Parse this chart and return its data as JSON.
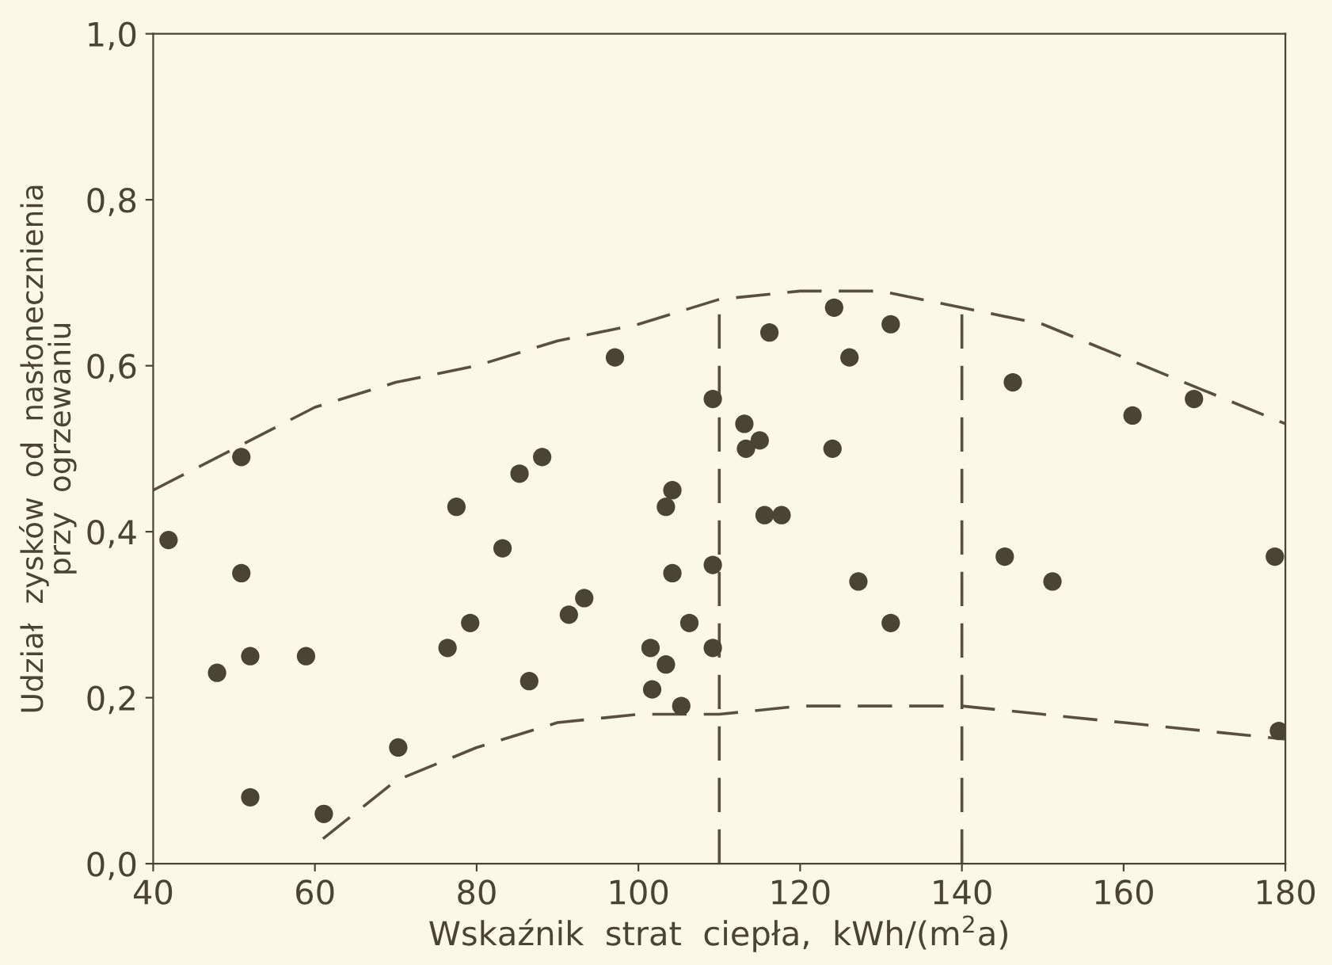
{
  "chart_data": {
    "type": "scatter",
    "xlabel": "Wskaźnik  strat  ciepła,  kWh/(m$^{2}$a)",
    "ylabel": "Udział  zysków  od  nasłonecznienia\nprzy  ogrzewaniu",
    "xlim": [
      40,
      180
    ],
    "xticks": [
      40,
      60,
      80,
      100,
      120,
      140,
      160,
      180
    ],
    "ylim": [
      0,
      1
    ],
    "yticks": [
      {
        "value": 0,
        "label": "0,0"
      },
      {
        "value": 0.2,
        "label": "0,2"
      },
      {
        "value": 0.4,
        "label": "0,4"
      },
      {
        "value": 0.6,
        "label": "0,6"
      },
      {
        "value": 0.8,
        "label": "0,8"
      },
      {
        "value": 1,
        "label": "1,0"
      }
    ],
    "grid": false,
    "legend": false,
    "marker": "circle",
    "series": [
      {
        "color": "#4a4434",
        "x": [
          41.9,
          47.9,
          50.9,
          50.9,
          52,
          52,
          58.9,
          61.1,
          70.3,
          76.4,
          77.5,
          79.2,
          83.2,
          85.3,
          86.5,
          88.1,
          91.4,
          93.3,
          97.1,
          101.5,
          101.7,
          103.4,
          103.4,
          104.2,
          104.2,
          105.3,
          106.3,
          109.2,
          109.2,
          109.2,
          113.1,
          113.3,
          115,
          115.6,
          116.2,
          117.7,
          124,
          124.2,
          126.1,
          127.2,
          131.2,
          131.2,
          145.3,
          146.3,
          151.2,
          161.1,
          168.7,
          178.7,
          179.2
        ],
        "values": [
          0.39,
          0.23,
          0.49,
          0.35,
          0.25,
          0.08,
          0.25,
          0.06,
          0.14,
          0.26,
          0.43,
          0.29,
          0.38,
          0.47,
          0.22,
          0.49,
          0.3,
          0.32,
          0.61,
          0.26,
          0.21,
          0.43,
          0.24,
          0.45,
          0.35,
          0.19,
          0.29,
          0.56,
          0.36,
          0.26,
          0.53,
          0.5,
          0.51,
          0.42,
          0.64,
          0.42,
          0.5,
          0.67,
          0.61,
          0.34,
          0.65,
          0.29,
          0.37,
          0.58,
          0.34,
          0.54,
          0.56,
          0.37,
          0.16
        ]
      },
      {
        "type": "line",
        "line_style": "dashed",
        "marker": "none",
        "color": "#5a5040",
        "x": [
          40,
          50,
          60,
          70,
          80,
          90,
          100,
          110,
          120,
          130,
          140,
          150,
          160,
          170,
          180
        ],
        "values": [
          0.45,
          0.5,
          0.55,
          0.58,
          0.6,
          0.63,
          0.65,
          0.68,
          0.69,
          0.69,
          0.67,
          0.65,
          0.61,
          0.57,
          0.53
        ]
      },
      {
        "type": "line",
        "line_style": "dashed",
        "marker": "none",
        "color": "#5a5040",
        "x": [
          61,
          70,
          80,
          90,
          100,
          110,
          120,
          130,
          140,
          150,
          160,
          170,
          180
        ],
        "values": [
          0.03,
          0.1,
          0.14,
          0.17,
          0.18,
          0.18,
          0.19,
          0.19,
          0.19,
          0.18,
          0.17,
          0.16,
          0.15
        ]
      }
    ],
    "ref_lines": [
      {
        "axis": "x",
        "value": 110,
        "line_style": "dashed",
        "color": "#5a5040"
      },
      {
        "axis": "x",
        "value": 140,
        "line_style": "dashed",
        "color": "#5a5040"
      }
    ]
  }
}
